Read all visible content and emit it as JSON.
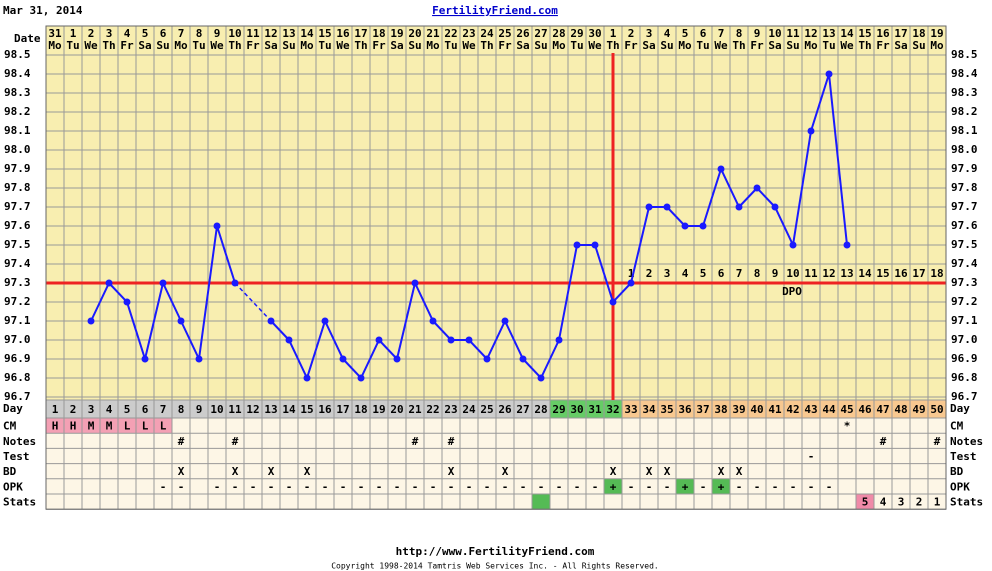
{
  "header": {
    "date": "Mar 31, 2014",
    "site": "FertilityFriend.com"
  },
  "footer": {
    "url": "http://www.FertilityFriend.com",
    "copyright": "Copyright 1998-2014 Tamtris Web Services Inc. - All Rights Reserved."
  },
  "chart_data": {
    "type": "line",
    "x_label": "Date",
    "dates": [
      31,
      1,
      2,
      3,
      4,
      5,
      6,
      7,
      8,
      9,
      10,
      11,
      12,
      13,
      14,
      15,
      16,
      17,
      18,
      19,
      20,
      21,
      22,
      23,
      24,
      25,
      26,
      27,
      28,
      29,
      30,
      1,
      2,
      3,
      4,
      5,
      6,
      7,
      8,
      9,
      10,
      11,
      12,
      13,
      14,
      15,
      16,
      17,
      18,
      19
    ],
    "weekdays": [
      "Mo",
      "Tu",
      "We",
      "Th",
      "Fr",
      "Sa",
      "Su",
      "Mo",
      "Tu",
      "We",
      "Th",
      "Fr",
      "Sa",
      "Su",
      "Mo",
      "Tu",
      "We",
      "Th",
      "Fr",
      "Sa",
      "Su",
      "Mo",
      "Tu",
      "We",
      "Th",
      "Fr",
      "Sa",
      "Su",
      "Mo",
      "Tu",
      "We",
      "Th",
      "Fr",
      "Sa",
      "Su",
      "Mo",
      "Tu",
      "We",
      "Th",
      "Fr",
      "Sa",
      "Su",
      "Mo",
      "Tu",
      "We",
      "Th",
      "Fr",
      "Sa",
      "Su",
      "Mo"
    ],
    "series": [
      {
        "color": "#1a1aff",
        "values": [
          null,
          null,
          97.1,
          97.3,
          97.2,
          96.9,
          97.3,
          97.1,
          96.9,
          97.6,
          97.3,
          null,
          97.1,
          97.0,
          96.8,
          97.1,
          96.9,
          96.8,
          97.0,
          96.9,
          97.3,
          97.1,
          97.0,
          97.0,
          96.9,
          97.1,
          96.9,
          96.8,
          97.0,
          97.5,
          97.5,
          97.2,
          97.3,
          97.7,
          97.7,
          97.6,
          97.6,
          97.9,
          97.7,
          97.8,
          97.7,
          97.5,
          98.1,
          98.4,
          97.5,
          null,
          null,
          null,
          null,
          null
        ]
      }
    ],
    "ylim": [
      96.7,
      98.5
    ],
    "yticks": [
      96.7,
      96.8,
      96.9,
      {
        "value": 97.0,
        "label": "97.0"
      },
      97.1,
      97.2,
      97.3,
      97.4,
      97.5,
      97.6,
      97.7,
      97.8,
      97.9,
      {
        "value": 98.0,
        "label": "98.0"
      },
      98.1,
      98.2,
      98.3,
      98.4,
      98.5
    ],
    "coverline": 97.3,
    "coverline_color": "#ee2222",
    "ovulation_cycle_day": 32,
    "dpo_label": "DPO",
    "dpo": [
      null,
      null,
      null,
      null,
      null,
      null,
      null,
      null,
      null,
      null,
      null,
      null,
      null,
      null,
      null,
      null,
      null,
      null,
      null,
      null,
      null,
      null,
      null,
      null,
      null,
      null,
      null,
      null,
      null,
      null,
      null,
      null,
      1,
      2,
      3,
      4,
      5,
      6,
      7,
      8,
      9,
      10,
      11,
      12,
      13,
      14,
      15,
      16,
      17,
      18
    ],
    "day_label": "Day",
    "cycle_days": [
      1,
      2,
      3,
      4,
      5,
      6,
      7,
      8,
      9,
      10,
      11,
      12,
      13,
      14,
      15,
      16,
      17,
      18,
      19,
      20,
      21,
      22,
      23,
      24,
      25,
      26,
      27,
      28,
      29,
      30,
      31,
      32,
      33,
      34,
      35,
      36,
      37,
      38,
      39,
      40,
      41,
      42,
      43,
      44,
      45,
      46,
      47,
      48,
      49,
      50
    ],
    "phases": [
      {
        "from": 1,
        "to": 28,
        "color": "#cccccc"
      },
      {
        "from": 29,
        "to": 32,
        "color": "#66cc66"
      },
      {
        "from": 33,
        "to": 50,
        "color": "#f8c890"
      }
    ],
    "rows": [
      {
        "label": "CM",
        "cells": [
          "H",
          "H",
          "M",
          "M",
          "L",
          "L",
          "L",
          null,
          null,
          null,
          null,
          null,
          null,
          null,
          null,
          null,
          null,
          null,
          null,
          null,
          null,
          null,
          null,
          null,
          null,
          null,
          null,
          null,
          null,
          null,
          null,
          null,
          null,
          null,
          null,
          null,
          null,
          null,
          null,
          null,
          null,
          null,
          null,
          null,
          "*",
          null,
          null,
          null,
          null,
          null
        ],
        "highlights": [
          {
            "day": 1,
            "color": "#f4a0b4"
          },
          {
            "day": 2,
            "color": "#f4a0b4"
          },
          {
            "day": 3,
            "color": "#f4a0b4"
          },
          {
            "day": 4,
            "color": "#f4a0b4"
          },
          {
            "day": 5,
            "color": "#f4a0b4"
          },
          {
            "day": 6,
            "color": "#f4a0b4"
          },
          {
            "day": 7,
            "color": "#f4a0b4"
          }
        ]
      },
      {
        "label": "Notes",
        "cells": [
          null,
          null,
          null,
          null,
          null,
          null,
          null,
          "#",
          null,
          null,
          "#",
          null,
          null,
          null,
          null,
          null,
          null,
          null,
          null,
          null,
          "#",
          null,
          "#",
          null,
          null,
          null,
          null,
          null,
          null,
          null,
          null,
          null,
          null,
          null,
          null,
          null,
          null,
          null,
          null,
          null,
          null,
          null,
          null,
          null,
          null,
          null,
          "#",
          null,
          null,
          "#"
        ]
      },
      {
        "label": "Test",
        "cells": [
          null,
          null,
          null,
          null,
          null,
          null,
          null,
          null,
          null,
          null,
          null,
          null,
          null,
          null,
          null,
          null,
          null,
          null,
          null,
          null,
          null,
          null,
          null,
          null,
          null,
          null,
          null,
          null,
          null,
          null,
          null,
          null,
          null,
          null,
          null,
          null,
          null,
          null,
          null,
          null,
          null,
          null,
          "-",
          null,
          null,
          null,
          null,
          null,
          null,
          null
        ]
      },
      {
        "label": "BD",
        "cells": [
          null,
          null,
          null,
          null,
          null,
          null,
          null,
          "X",
          null,
          null,
          "X",
          null,
          "X",
          null,
          "X",
          null,
          null,
          null,
          null,
          null,
          null,
          null,
          "X",
          null,
          null,
          "X",
          null,
          null,
          null,
          null,
          null,
          "X",
          null,
          "X",
          "X",
          null,
          null,
          "X",
          "X",
          null,
          null,
          null,
          null,
          null,
          null,
          null,
          null,
          null,
          null,
          null
        ]
      },
      {
        "label": "OPK",
        "cells": [
          null,
          null,
          null,
          null,
          null,
          null,
          "-",
          "-",
          null,
          "-",
          "-",
          "-",
          "-",
          "-",
          "-",
          "-",
          "-",
          "-",
          "-",
          "-",
          "-",
          "-",
          "-",
          "-",
          "-",
          "-",
          "-",
          "-",
          "-",
          "-",
          "-",
          "+",
          "-",
          "-",
          "-",
          "+",
          "-",
          "+",
          "-",
          "-",
          "-",
          "-",
          "-",
          "-",
          null,
          null,
          null,
          null,
          null,
          null
        ],
        "highlights": [
          {
            "day": 32,
            "color": "#55bb55"
          },
          {
            "day": 36,
            "color": "#55bb55"
          },
          {
            "day": 38,
            "color": "#55bb55"
          }
        ]
      },
      {
        "label": "Stats",
        "cells": [
          null,
          null,
          null,
          null,
          null,
          null,
          null,
          null,
          null,
          null,
          null,
          null,
          null,
          null,
          null,
          null,
          null,
          null,
          null,
          null,
          null,
          null,
          null,
          null,
          null,
          null,
          null,
          null,
          null,
          null,
          null,
          null,
          null,
          null,
          null,
          null,
          null,
          null,
          null,
          null,
          null,
          null,
          null,
          null,
          null,
          5,
          4,
          3,
          2,
          1
        ],
        "highlights": [
          {
            "day": 28,
            "color": "#55bb55"
          },
          {
            "day": 46,
            "color": "#f08aa8"
          }
        ]
      }
    ]
  }
}
